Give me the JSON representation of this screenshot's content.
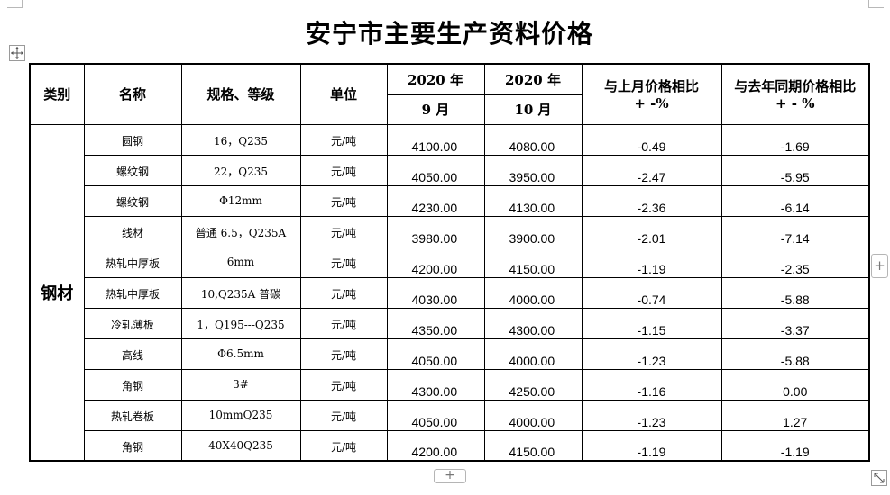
{
  "title": "安宁市主要生产资料价格",
  "header": {
    "category": "类别",
    "name": "名称",
    "spec": "规格、等级",
    "unit": "单位",
    "col_prev_year": "2020 年",
    "col_prev_month": "9 月",
    "col_cur_year": "2020 年",
    "col_cur_month": "10 月",
    "mom_line1": "与上月价格相比",
    "mom_line2": "+ -%",
    "yoy_line1": "与去年同期价格相比",
    "yoy_line2": "+ - %"
  },
  "category": "钢材",
  "rows": [
    {
      "name": "圆钢",
      "spec": "16，Q235",
      "unit": "元/吨",
      "prev": "4100.00",
      "cur": "4080.00",
      "mom": "-0.49",
      "yoy": "-1.69"
    },
    {
      "name": "螺纹钢",
      "spec": "22，Q235",
      "unit": "元/吨",
      "prev": "4050.00",
      "cur": "3950.00",
      "mom": "-2.47",
      "yoy": "-5.95"
    },
    {
      "name": "螺纹钢",
      "spec": "Φ12mm",
      "unit": "元/吨",
      "prev": "4230.00",
      "cur": "4130.00",
      "mom": "-2.36",
      "yoy": "-6.14"
    },
    {
      "name": "线材",
      "spec": "普通 6.5，Q235A",
      "unit": "元/吨",
      "prev": "3980.00",
      "cur": "3900.00",
      "mom": "-2.01",
      "yoy": "-7.14"
    },
    {
      "name": "热轧中厚板",
      "spec": "6mm",
      "unit": "元/吨",
      "prev": "4200.00",
      "cur": "4150.00",
      "mom": "-1.19",
      "yoy": "-2.35"
    },
    {
      "name": "热轧中厚板",
      "spec": "10,Q235A 普碳",
      "unit": "元/吨",
      "prev": "4030.00",
      "cur": "4000.00",
      "mom": "-0.74",
      "yoy": "-5.88"
    },
    {
      "name": "冷轧薄板",
      "spec": "1，Q195---Q235",
      "unit": "元/吨",
      "prev": "4350.00",
      "cur": "4300.00",
      "mom": "-1.15",
      "yoy": "-3.37"
    },
    {
      "name": "高线",
      "spec": "Φ6.5mm",
      "unit": "元/吨",
      "prev": "4050.00",
      "cur": "4000.00",
      "mom": "-1.23",
      "yoy": "-5.88"
    },
    {
      "name": "角钢",
      "spec": "3#",
      "unit": "元/吨",
      "prev": "4300.00",
      "cur": "4250.00",
      "mom": "-1.16",
      "yoy": "0.00"
    },
    {
      "name": "热轧卷板",
      "spec": "10mmQ235",
      "unit": "元/吨",
      "prev": "4050.00",
      "cur": "4000.00",
      "mom": "-1.23",
      "yoy": "1.27"
    },
    {
      "name": "角钢",
      "spec": "40X40Q235",
      "unit": "元/吨",
      "prev": "4200.00",
      "cur": "4150.00",
      "mom": "-1.19",
      "yoy": "-1.19"
    }
  ],
  "controls": {
    "add_column": "+",
    "add_row": "+",
    "move_icon": "move-arrows-icon",
    "resize_icon": "resize-diagonal-icon"
  }
}
